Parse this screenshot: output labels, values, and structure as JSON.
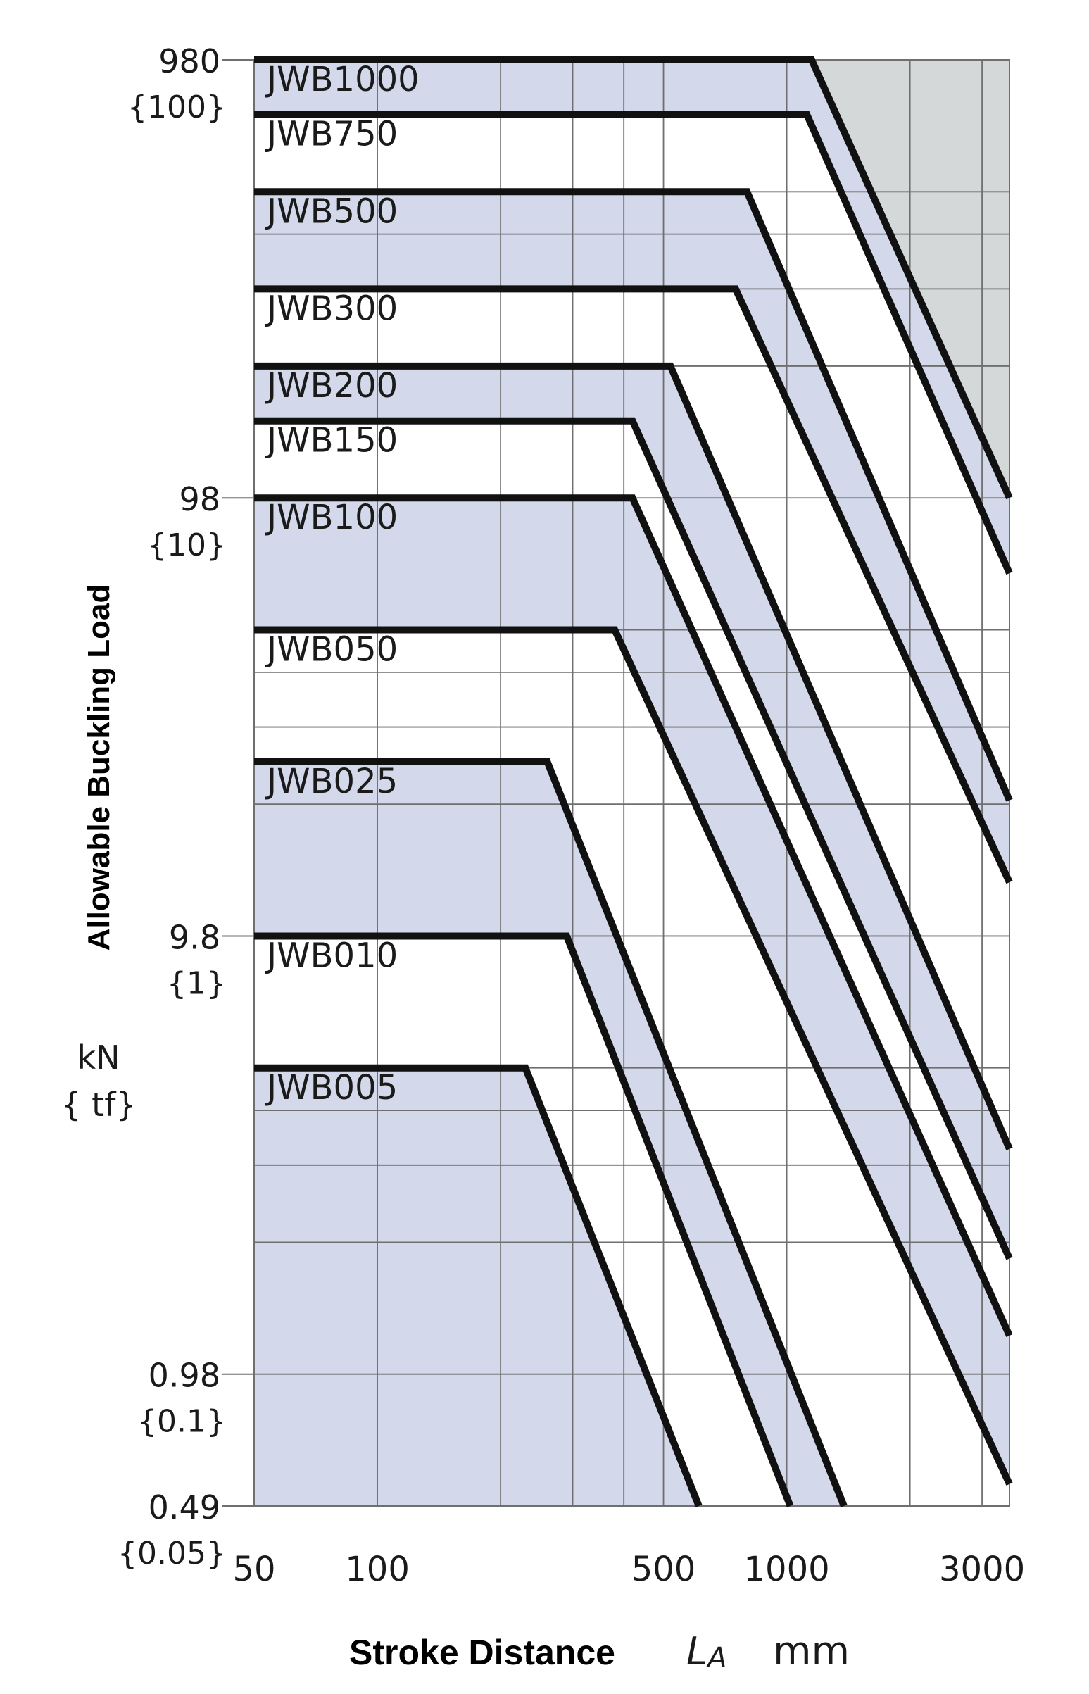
{
  "chart_data": {
    "type": "line",
    "xlabel": "Stroke Distance",
    "xlabel_symbol": "L",
    "xlabel_symbol_sub": "A",
    "xlabel_unit": "mm",
    "ylabel": "Allowable Buckling Load",
    "yunit_primary": "kN",
    "yunit_secondary": "{ tf}",
    "xscale": "log",
    "yscale": "log",
    "xlim": [
      50,
      3500
    ],
    "ylim": [
      0.49,
      980
    ],
    "grid": true,
    "x_ticks": [
      {
        "value": 50,
        "label": "50"
      },
      {
        "value": 100,
        "label": "100"
      },
      {
        "value": 500,
        "label": "500"
      },
      {
        "value": 1000,
        "label": "1000"
      },
      {
        "value": 3000,
        "label": "3000"
      }
    ],
    "x_gridlines": [
      100,
      200,
      300,
      400,
      500,
      1000,
      2000,
      3000
    ],
    "y_ticks": [
      {
        "value": 980,
        "label": "980",
        "sub": "{100}"
      },
      {
        "value": 98,
        "label": "98",
        "sub": "{10}"
      },
      {
        "value": 9.8,
        "label": "9.8",
        "sub": "{1}"
      },
      {
        "value": 0.98,
        "label": "0.98",
        "sub": "{0.1}"
      },
      {
        "value": 0.49,
        "label": "0.49",
        "sub": "{0.05}"
      }
    ],
    "y_gridlines": [
      1.96,
      2.94,
      3.92,
      4.9,
      19.6,
      29.4,
      39.2,
      49,
      196,
      294,
      392,
      490
    ],
    "shaded_region": {
      "color": "#d5d8d9"
    },
    "series": [
      {
        "name": "JWB1000",
        "points": [
          [
            50,
            980
          ],
          [
            1150,
            980
          ],
          [
            3500,
            98
          ]
        ],
        "band": "#d3d9ea"
      },
      {
        "name": "JWB750",
        "points": [
          [
            50,
            735
          ],
          [
            1120,
            735
          ],
          [
            3500,
            66
          ]
        ],
        "band": "#ffffff"
      },
      {
        "name": "JWB500",
        "points": [
          [
            50,
            490
          ],
          [
            800,
            490
          ],
          [
            3500,
            20
          ]
        ],
        "band": "#d3d9ea"
      },
      {
        "name": "JWB300",
        "points": [
          [
            50,
            294
          ],
          [
            750,
            294
          ],
          [
            3500,
            13
          ]
        ],
        "band": "#ffffff"
      },
      {
        "name": "JWB200",
        "points": [
          [
            50,
            196
          ],
          [
            520,
            196
          ],
          [
            3500,
            3.2
          ]
        ],
        "band": "#d3d9ea"
      },
      {
        "name": "JWB150",
        "points": [
          [
            50,
            147
          ],
          [
            420,
            147
          ],
          [
            3500,
            1.8
          ]
        ],
        "band": "#ffffff"
      },
      {
        "name": "JWB100",
        "points": [
          [
            50,
            98
          ],
          [
            420,
            98
          ],
          [
            3500,
            1.2
          ]
        ],
        "band": "#d3d9ea"
      },
      {
        "name": "JWB050",
        "points": [
          [
            50,
            49
          ],
          [
            380,
            49
          ],
          [
            3500,
            0.55
          ]
        ],
        "band": "#ffffff"
      },
      {
        "name": "JWB025",
        "points": [
          [
            50,
            24.5
          ],
          [
            260,
            24.5
          ],
          [
            1380,
            0.49
          ]
        ],
        "band": "#d3d9ea"
      },
      {
        "name": "JWB010",
        "points": [
          [
            50,
            9.8
          ],
          [
            290,
            9.8
          ],
          [
            1020,
            0.49
          ]
        ],
        "band": "#ffffff"
      },
      {
        "name": "JWB005",
        "points": [
          [
            50,
            4.9
          ],
          [
            230,
            4.9
          ],
          [
            610,
            0.49
          ]
        ],
        "band": "#d3d9ea"
      }
    ],
    "colors": {
      "band_blue": "#d3d9ea",
      "band_white": "#ffffff",
      "corner_gray": "#d5d8d9",
      "gridline": "#6f6f6f",
      "curve": "#111111"
    }
  }
}
